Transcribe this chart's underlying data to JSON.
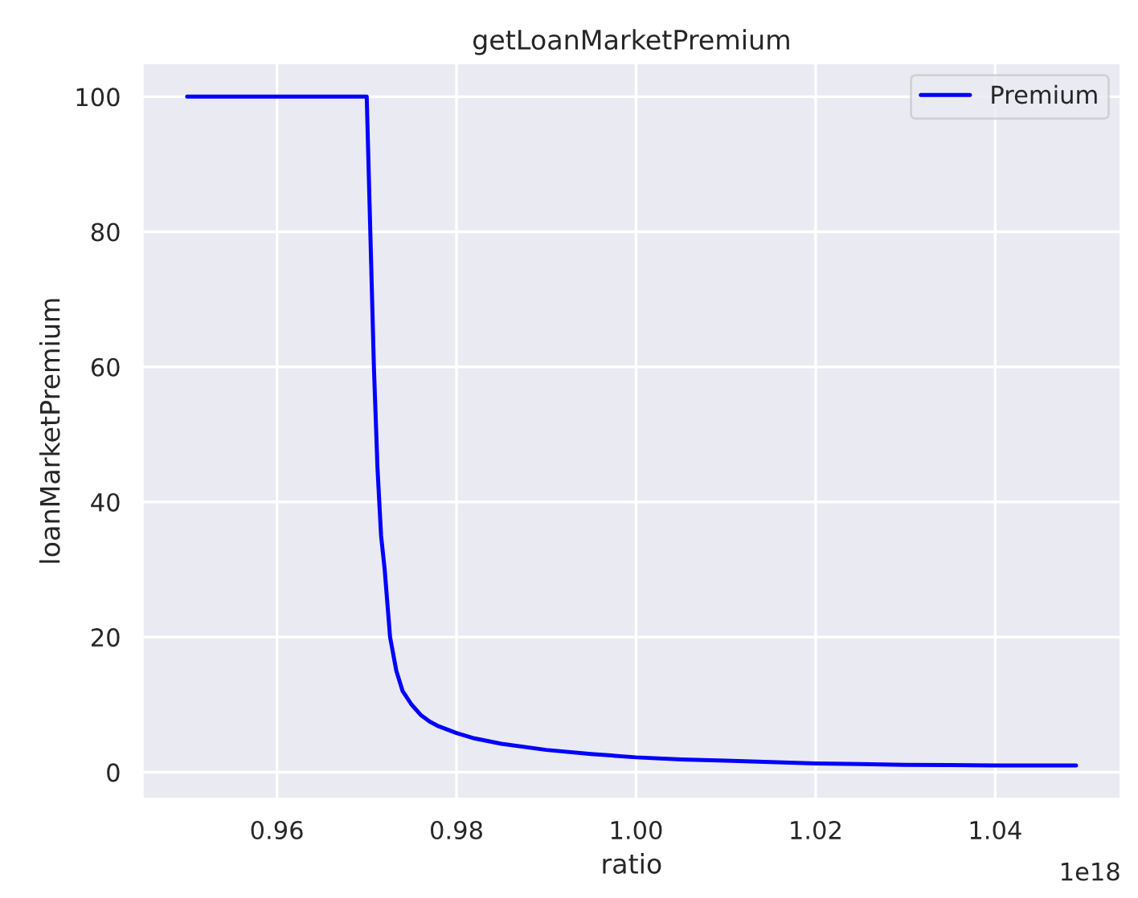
{
  "chart_data": {
    "type": "line",
    "title": "getLoanMarketPremium",
    "xlabel": "ratio",
    "ylabel": "loanMarketPremium",
    "x": [
      0.95,
      0.955,
      0.96,
      0.965,
      0.97,
      0.9704,
      0.9708,
      0.9712,
      0.9716,
      0.972,
      0.9726,
      0.9733,
      0.974,
      0.975,
      0.976,
      0.977,
      0.978,
      0.98,
      0.982,
      0.985,
      0.99,
      0.995,
      1.0,
      1.005,
      1.01,
      1.015,
      1.02,
      1.025,
      1.03,
      1.035,
      1.04,
      1.045,
      1.049
    ],
    "series": [
      {
        "name": "Premium",
        "color": "#0000ff",
        "values": [
          100,
          100,
          100,
          100,
          100,
          80,
          60,
          45,
          35,
          30,
          20,
          15,
          12,
          10,
          8.5,
          7.5,
          6.8,
          5.8,
          5,
          4.2,
          3.3,
          2.7,
          2.2,
          1.9,
          1.7,
          1.5,
          1.3,
          1.2,
          1.1,
          1.05,
          1,
          1,
          1
        ]
      }
    ],
    "xlim": [
      0.945,
      1.054
    ],
    "ylim": [
      -4,
      105
    ],
    "xticks": [
      {
        "value": 0.96,
        "label": "0.96"
      },
      {
        "value": 0.98,
        "label": "0.98"
      },
      {
        "value": 1.0,
        "label": "1.00"
      },
      {
        "value": 1.02,
        "label": "1.02"
      },
      {
        "value": 1.04,
        "label": "1.04"
      }
    ],
    "yticks": [
      0,
      20,
      40,
      60,
      80,
      100
    ],
    "annotations": [
      "1e18"
    ],
    "grid": true,
    "legend": "top right",
    "marker": "none",
    "line_style": "solid"
  }
}
